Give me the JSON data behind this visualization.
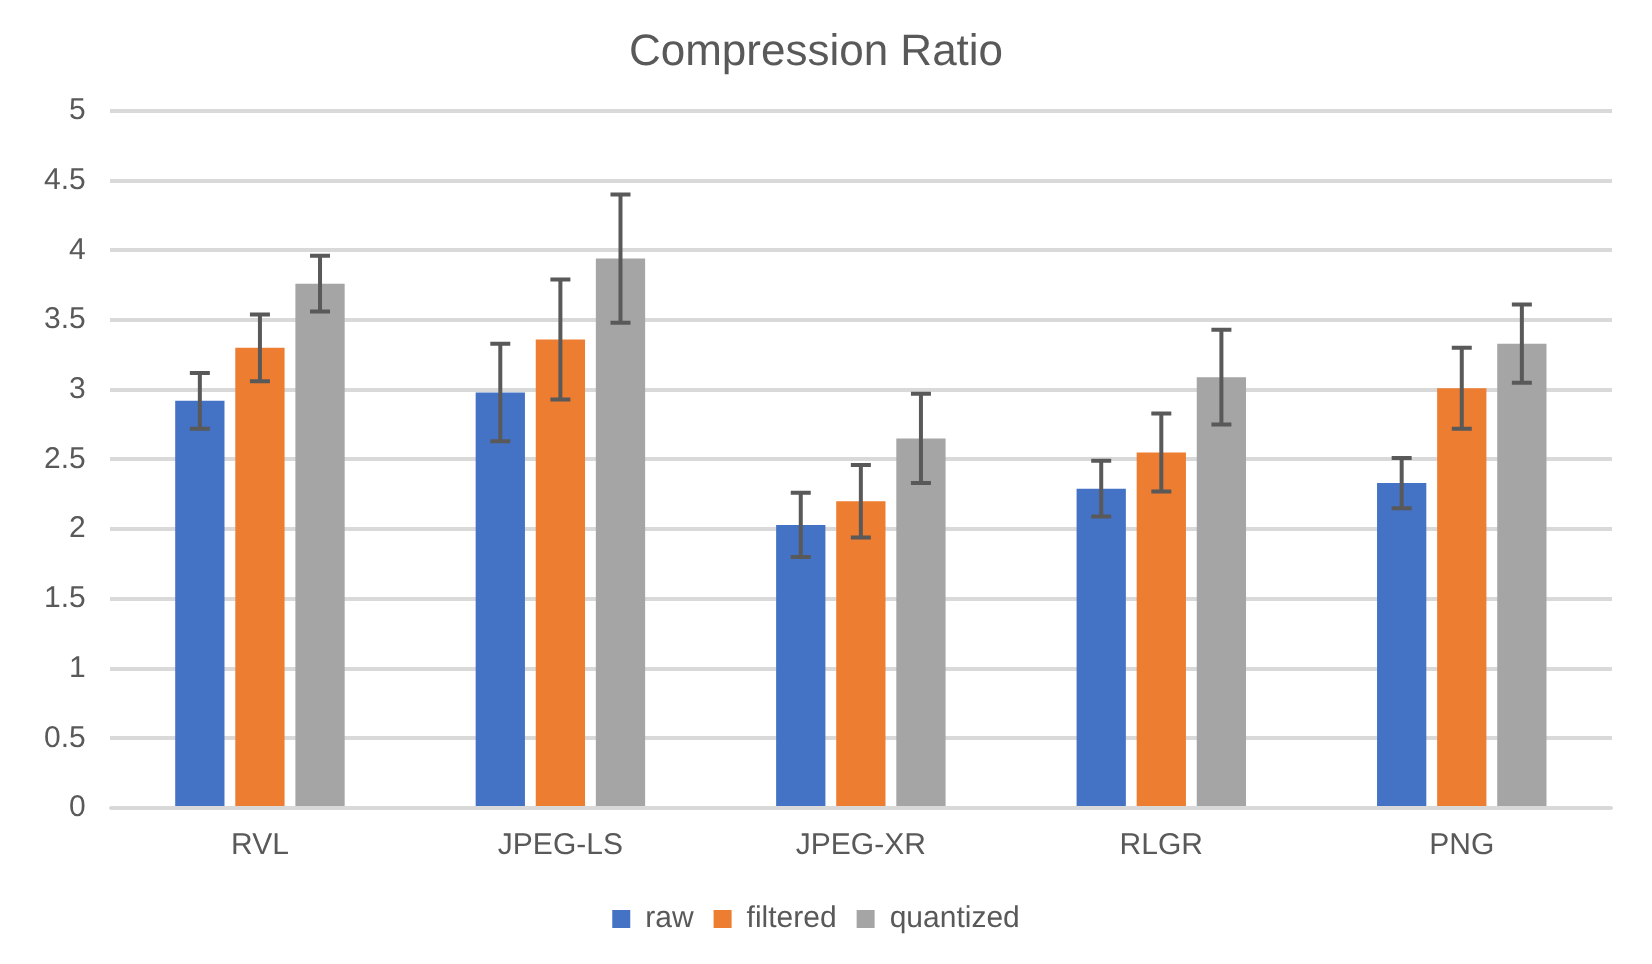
{
  "chart_data": {
    "type": "bar",
    "title": "Compression Ratio",
    "categories": [
      "RVL",
      "JPEG-LS",
      "JPEG-XR",
      "RLGR",
      "PNG"
    ],
    "series": [
      {
        "name": "raw",
        "color": "#4472c4",
        "values": [
          2.92,
          2.98,
          2.03,
          2.29,
          2.33
        ],
        "errors": [
          0.2,
          0.35,
          0.23,
          0.2,
          0.18
        ]
      },
      {
        "name": "filtered",
        "color": "#ed7d31",
        "values": [
          3.3,
          3.36,
          2.2,
          2.55,
          3.01
        ],
        "errors": [
          0.24,
          0.43,
          0.26,
          0.28,
          0.29
        ]
      },
      {
        "name": "quantized",
        "color": "#a5a5a5",
        "values": [
          3.76,
          3.94,
          2.65,
          3.09,
          3.33
        ],
        "errors": [
          0.2,
          0.46,
          0.32,
          0.34,
          0.28
        ]
      }
    ],
    "ylim": [
      0,
      5
    ],
    "yticks": [
      0,
      0.5,
      1,
      1.5,
      2,
      2.5,
      3,
      3.5,
      4,
      4.5,
      5
    ],
    "grid": "y",
    "legend": "bottom"
  }
}
